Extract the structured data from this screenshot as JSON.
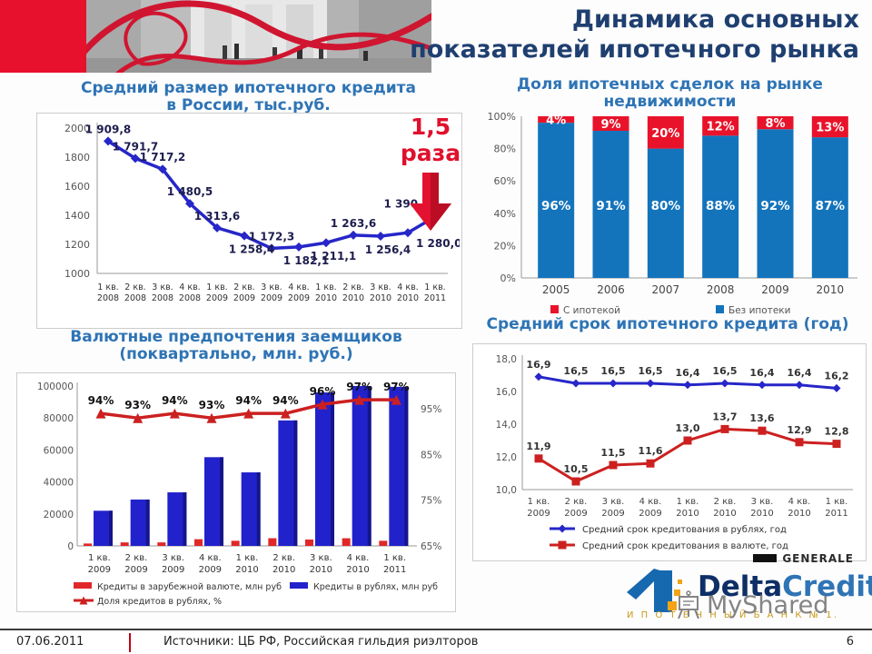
{
  "slide": {
    "title_line1": "Динамика основных",
    "title_line2": "показателей ипотечного рынка",
    "footer_date": "07.06.2011",
    "footer_sources": "Источники: ЦБ РФ, Российская гильдия риэлторов",
    "page_number": "6"
  },
  "annotation": {
    "line1": "1,5",
    "line2": "раза",
    "icon": "red-down-arrow-3d"
  },
  "logo": {
    "generale": "GENERALE",
    "brand_delta": "Delta",
    "brand_credit": "Credit",
    "subtitle": "И П О Т Е Ч Н Ы Й   Б А Н К   № 1.",
    "watermark": "MyShared",
    "watermark_icon": "easel-icon",
    "mark_icon": "house-number-one-icon"
  },
  "colors": {
    "accent_red": "#e8112d",
    "title_navy": "#1f3f70",
    "chart_title_blue": "#2e74b5",
    "line_blue": "#2626c9",
    "bar_blue": "#2222cc",
    "stacked_blue": "#1374bc",
    "stacked_red": "#e8132a",
    "line_red": "#cc2020"
  },
  "chart_data": [
    {
      "id": "avg_credit_size",
      "type": "line",
      "title_lines": [
        "Средний размер ипотечного кредита",
        "в России, тыс.руб."
      ],
      "categories_top": [
        "1 кв.",
        "2 кв.",
        "3 кв.",
        "4 кв.",
        "1 кв.",
        "2 кв.",
        "3 кв.",
        "4 кв.",
        "1 кв.",
        "2 кв.",
        "3 кв.",
        "4 кв.",
        "1 кв."
      ],
      "categories_bottom": [
        "2008",
        "2008",
        "2008",
        "2008",
        "2009",
        "2009",
        "2009",
        "2009",
        "2010",
        "2010",
        "2010",
        "2010",
        "2011"
      ],
      "values": [
        1909.8,
        1791.7,
        1717.2,
        1480.5,
        1313.6,
        1258.4,
        1172.3,
        1182.1,
        1211.1,
        1263.6,
        1256.4,
        1280.0,
        1390.0
      ],
      "labels": [
        "1 909,8",
        "1 791,7",
        "1 717,2",
        "1 480,5",
        "1 313,6",
        "1 258,4",
        "1 172,3",
        "1 182,1",
        "1 211,1",
        "1 263,6",
        "1 256,4",
        "1 280,0",
        "1 390,0"
      ],
      "label_pos": [
        "a",
        "a",
        "a",
        "a",
        "a",
        "b",
        "a",
        "b",
        "b",
        "a",
        "b",
        "r",
        "al"
      ],
      "ylim": [
        1000,
        2000
      ],
      "yticks": [
        2000,
        1800,
        1600,
        1400,
        1200,
        1000
      ],
      "color": "#2626c9",
      "grid": false,
      "legend_position": "none"
    },
    {
      "id": "mortgage_share",
      "type": "stacked_bar",
      "title_lines": [
        "Доля ипотечных сделок на рынке",
        "недвижимости"
      ],
      "categories": [
        "2005",
        "2006",
        "2007",
        "2008",
        "2009",
        "2010"
      ],
      "series": [
        {
          "name": "С ипотекой",
          "color": "#e8132a",
          "values": [
            4,
            9,
            20,
            12,
            8,
            13
          ],
          "labels": [
            "4%",
            "9%",
            "20%",
            "12%",
            "8%",
            "13%"
          ]
        },
        {
          "name": "Без ипотеки",
          "color": "#1374bc",
          "values": [
            96,
            91,
            80,
            88,
            92,
            87
          ],
          "labels": [
            "96%",
            "91%",
            "80%",
            "88%",
            "92%",
            "87%"
          ]
        }
      ],
      "yticks": [
        "100%",
        "80%",
        "60%",
        "40%",
        "20%",
        "0%"
      ],
      "ylim": [
        0,
        100
      ],
      "grid": false,
      "legend_position": "bottom"
    },
    {
      "id": "currency_preferences",
      "type": "combo_bar_line",
      "title_lines": [
        "Валютные предпочтения заемщиков",
        "(поквартально, млн. руб.)"
      ],
      "categories_top": [
        "1 кв.",
        "2 кв.",
        "3 кв.",
        "4 кв.",
        "1 кв.",
        "2 кв.",
        "3 кв.",
        "4 кв.",
        "1 кв."
      ],
      "categories_bottom": [
        "2009",
        "2009",
        "2009",
        "2009",
        "2010",
        "2010",
        "2010",
        "2010",
        "2011"
      ],
      "bars": [
        {
          "name": "Кредиты в зарубежной валюте, млн руб",
          "color": "#e02828",
          "values": [
            1500,
            2200,
            2200,
            4200,
            3200,
            4800,
            4000,
            4800,
            3200
          ]
        },
        {
          "name": "Кредиты в рублях, млн руб",
          "color": "#2222cc",
          "values": [
            22000,
            29000,
            33500,
            55500,
            46000,
            78500,
            96000,
            100000,
            99500
          ]
        }
      ],
      "line": {
        "name": "Доля кредитов в рублях, %",
        "color": "#cc2020",
        "values": [
          94,
          93,
          94,
          93,
          94,
          94,
          96,
          97,
          97
        ],
        "labels": [
          "94%",
          "93%",
          "94%",
          "93%",
          "94%",
          "94%",
          "96%",
          "97%",
          "97%"
        ]
      },
      "left_ticks": [
        100000,
        80000,
        60000,
        40000,
        20000,
        0
      ],
      "left_lim": [
        0,
        100000
      ],
      "right_ticks": [
        "95%",
        "85%",
        "75%",
        "65%"
      ],
      "right_tick_values": [
        95,
        85,
        75,
        65
      ],
      "right_lim": [
        65,
        100
      ],
      "grid": false,
      "legend_position": "bottom"
    },
    {
      "id": "avg_term",
      "type": "line",
      "title": "Средний срок  ипотечного кредита (год)",
      "categories_top": [
        "1 кв.",
        "2 кв.",
        "3 кв.",
        "4 кв.",
        "1 кв.",
        "2 кв.",
        "3 кв.",
        "4 кв.",
        "1 кв."
      ],
      "categories_bottom": [
        "2009",
        "2009",
        "2009",
        "2009",
        "2010",
        "2010",
        "2010",
        "2010",
        "2011"
      ],
      "series": [
        {
          "name": "Средний срок кредитования в рублях, год",
          "color": "#2626c9",
          "marker": "diamond",
          "values": [
            16.9,
            16.5,
            16.5,
            16.5,
            16.4,
            16.5,
            16.4,
            16.4,
            16.2
          ],
          "labels": [
            "16,9",
            "16,5",
            "16,5",
            "16,5",
            "16,4",
            "16,5",
            "16,4",
            "16,4",
            "16,2"
          ]
        },
        {
          "name": "Средний срок кредитования в валюте, год",
          "color": "#cc2020",
          "marker": "square",
          "values": [
            11.9,
            10.5,
            11.5,
            11.6,
            13.0,
            13.7,
            13.6,
            12.9,
            12.8
          ],
          "labels": [
            "11,9",
            "10,5",
            "11,5",
            "11,6",
            "13,0",
            "13,7",
            "13,6",
            "12,9",
            "12,8"
          ]
        }
      ],
      "yticks": [
        "18,0",
        "16,0",
        "14,0",
        "12,0",
        "10,0"
      ],
      "ytick_values": [
        18,
        16,
        14,
        12,
        10
      ],
      "ylim": [
        10,
        18
      ],
      "grid": false,
      "legend_position": "bottom"
    }
  ]
}
